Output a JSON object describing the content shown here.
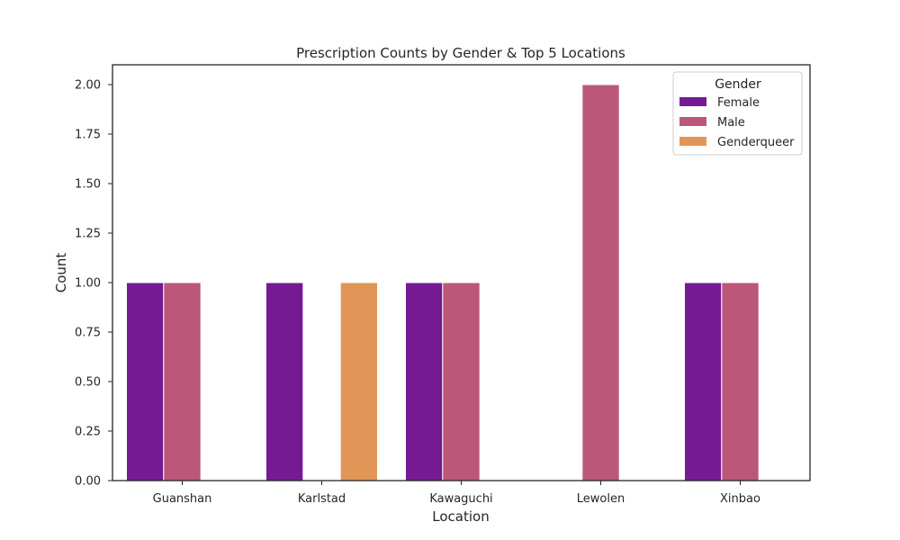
{
  "chart_data": {
    "type": "bar",
    "title": "Prescription Counts by Gender & Top 5 Locations",
    "xlabel": "Location",
    "ylabel": "Count",
    "categories": [
      "Guanshan",
      "Karlstad",
      "Kawaguchi",
      "Lewolen",
      "Xinbao"
    ],
    "series": [
      {
        "name": "Female",
        "color": "#751a93",
        "values": [
          1,
          1,
          1,
          0,
          1
        ]
      },
      {
        "name": "Male",
        "color": "#bb5779",
        "values": [
          1,
          0,
          1,
          2,
          1
        ]
      },
      {
        "name": "Genderqueer",
        "color": "#e19658",
        "values": [
          0,
          1,
          0,
          0,
          0
        ]
      }
    ],
    "ylim": [
      0,
      2.1
    ],
    "yticks": [
      "0.00",
      "0.25",
      "0.50",
      "0.75",
      "1.00",
      "1.25",
      "1.50",
      "1.75",
      "2.00"
    ],
    "legend": {
      "title": "Gender",
      "position": "top-right"
    },
    "grid": false
  }
}
